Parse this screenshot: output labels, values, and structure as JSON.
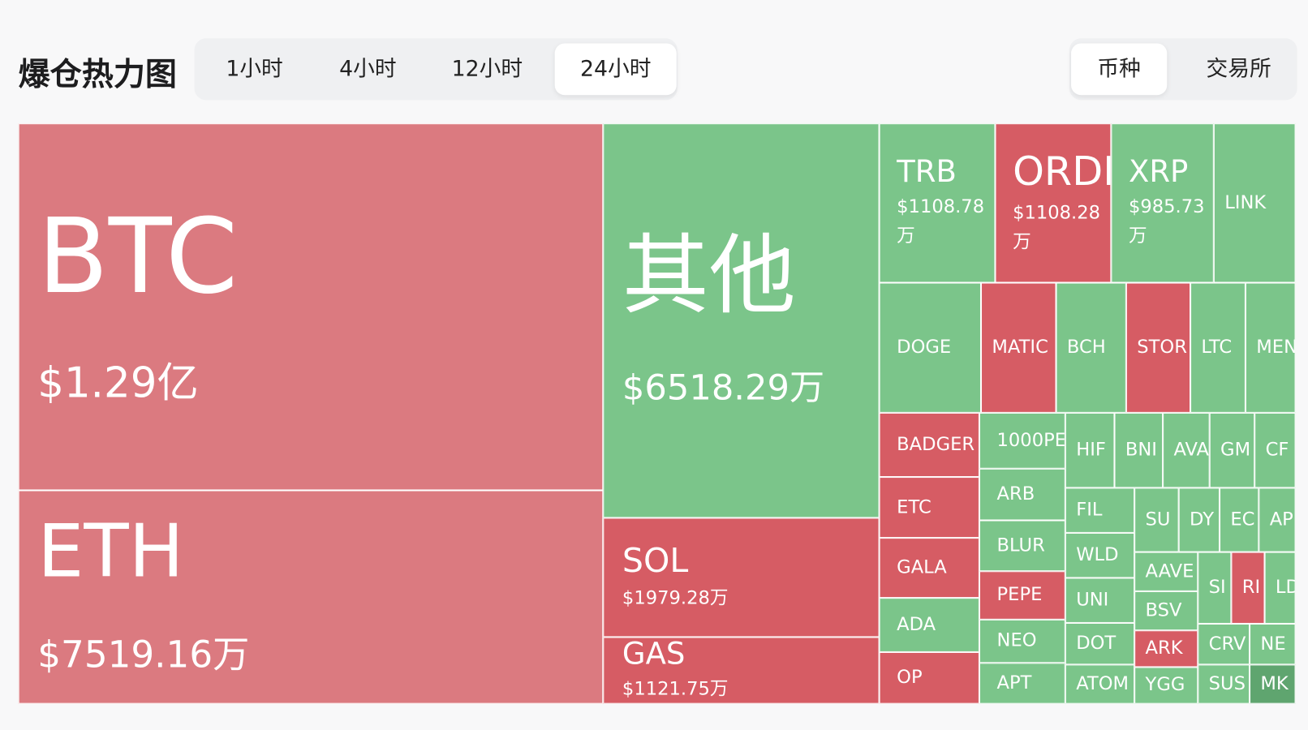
{
  "header": {
    "title": "爆仓热力图",
    "time_tabs": [
      "1小时",
      "4小时",
      "12小时",
      "24小时"
    ],
    "active_time_tab": 3,
    "group_tabs": [
      "币种",
      "交易所"
    ],
    "active_group_tab": 0
  },
  "treemap": {
    "tiles": [
      {
        "label": "BTC",
        "value": "$1.29亿",
        "color": "#db7a80"
      },
      {
        "label": "ETH",
        "value": "$7519.16万",
        "color": "#db7a80"
      },
      {
        "label": "其他",
        "value": "$6518.29万",
        "color": "#7bc58a"
      },
      {
        "label": "SOL",
        "value": "$1979.28万",
        "color": "#d65c64"
      },
      {
        "label": "GAS",
        "value": "$1121.75万",
        "color": "#d65c64"
      },
      {
        "label": "TRB",
        "value": "$1108.78万",
        "color": "#7bc58a"
      },
      {
        "label": "ORDI",
        "value": "$1108.28万",
        "color": "#d65c64"
      },
      {
        "label": "XRP",
        "value": "$985.73万",
        "color": "#7bc58a"
      },
      {
        "label": "LINK",
        "color": "#7bc58a"
      },
      {
        "label": "DOGE",
        "color": "#7bc58a"
      },
      {
        "label": "MATIC",
        "color": "#d65c64"
      },
      {
        "label": "BCH",
        "color": "#7bc58a"
      },
      {
        "label": "STOR",
        "color": "#d65c64"
      },
      {
        "label": "LTC",
        "color": "#7bc58a"
      },
      {
        "label": "MEN",
        "color": "#7bc58a"
      },
      {
        "label": "BADGER",
        "color": "#d65c64"
      },
      {
        "label": "ETC",
        "color": "#d65c64"
      },
      {
        "label": "GALA",
        "color": "#d65c64"
      },
      {
        "label": "ADA",
        "color": "#7bc58a"
      },
      {
        "label": "OP",
        "color": "#d65c64"
      },
      {
        "label": "1000PE",
        "color": "#7bc58a"
      },
      {
        "label": "ARB",
        "color": "#7bc58a"
      },
      {
        "label": "BLUR",
        "color": "#7bc58a"
      },
      {
        "label": "PEPE",
        "color": "#d65c64"
      },
      {
        "label": "NEO",
        "color": "#7bc58a"
      },
      {
        "label": "APT",
        "color": "#7bc58a"
      },
      {
        "label": "HIF",
        "color": "#7bc58a"
      },
      {
        "label": "BNI",
        "color": "#7bc58a"
      },
      {
        "label": "AVA",
        "color": "#7bc58a"
      },
      {
        "label": "GM",
        "color": "#7bc58a"
      },
      {
        "label": "CF",
        "color": "#7bc58a"
      },
      {
        "label": "FIL",
        "color": "#7bc58a"
      },
      {
        "label": "WLD",
        "color": "#7bc58a"
      },
      {
        "label": "UNI",
        "color": "#7bc58a"
      },
      {
        "label": "DOT",
        "color": "#7bc58a"
      },
      {
        "label": "ATOM",
        "color": "#7bc58a"
      },
      {
        "label": "SU",
        "color": "#7bc58a"
      },
      {
        "label": "DY",
        "color": "#7bc58a"
      },
      {
        "label": "EC",
        "color": "#7bc58a"
      },
      {
        "label": "AP",
        "color": "#7bc58a"
      },
      {
        "label": "AAVE",
        "color": "#7bc58a"
      },
      {
        "label": "BSV",
        "color": "#7bc58a"
      },
      {
        "label": "ARK",
        "color": "#d65c64"
      },
      {
        "label": "YGG",
        "color": "#7bc58a"
      },
      {
        "label": "SI",
        "color": "#7bc58a"
      },
      {
        "label": "RI",
        "color": "#d65c64"
      },
      {
        "label": "LD",
        "color": "#7bc58a"
      },
      {
        "label": "CRV",
        "color": "#7bc58a"
      },
      {
        "label": "NE",
        "color": "#7bc58a"
      },
      {
        "label": "SUS",
        "color": "#7bc58a"
      },
      {
        "label": "MK",
        "color": "#5fa56f"
      }
    ]
  }
}
